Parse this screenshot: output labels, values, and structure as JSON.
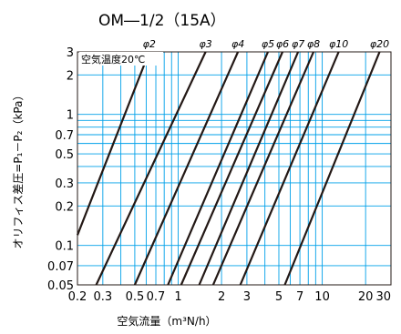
{
  "chart_data": {
    "type": "line",
    "title": "OM―1/2（15A）",
    "xlabel": "空気流量（m³N/h）",
    "ylabel": "オリフィス差圧=P₁－P₂（kPa）",
    "annotation": "空気温度20℃",
    "x_scale": "log",
    "y_scale": "log",
    "xlim": [
      0.2,
      30
    ],
    "ylim": [
      0.05,
      3
    ],
    "grid": true,
    "line_color": "#231815",
    "grid_color": "#00a0e9",
    "x_ticks": [
      {
        "value": 0.2,
        "label": "0.2"
      },
      {
        "value": 0.3,
        "label": "0.3"
      },
      {
        "value": 0.5,
        "label": "0.5"
      },
      {
        "value": 0.7,
        "label": "0.7"
      },
      {
        "value": 1,
        "label": "1"
      },
      {
        "value": 2,
        "label": "2"
      },
      {
        "value": 3,
        "label": "3"
      },
      {
        "value": 5,
        "label": "5"
      },
      {
        "value": 7,
        "label": "7"
      },
      {
        "value": 10,
        "label": "10"
      },
      {
        "value": 20,
        "label": "20"
      },
      {
        "value": 30,
        "label": "30"
      }
    ],
    "y_ticks": [
      {
        "value": 3,
        "label": "3"
      },
      {
        "value": 2,
        "label": "2"
      },
      {
        "value": 1,
        "label": "1"
      },
      {
        "value": 0.7,
        "label": "0.7"
      },
      {
        "value": 0.5,
        "label": "0.5"
      },
      {
        "value": 0.3,
        "label": "0.3"
      },
      {
        "value": 0.2,
        "label": "0.2"
      },
      {
        "value": 0.1,
        "label": "0.1"
      },
      {
        "value": 0.07,
        "label": "0.07"
      },
      {
        "value": 0.05,
        "label": "0.05"
      }
    ],
    "x_minor_gridlines": [
      0.4,
      0.6,
      0.8,
      0.9,
      4,
      6,
      8,
      9
    ],
    "y_minor_gridlines": [
      0.4,
      0.6,
      0.8,
      0.9
    ],
    "series": [
      {
        "name": "φ2",
        "x": [
          0.2,
          0.63
        ],
        "y": [
          0.12,
          3
        ]
      },
      {
        "name": "φ3",
        "x": [
          0.27,
          1.55
        ],
        "y": [
          0.05,
          3
        ]
      },
      {
        "name": "φ4",
        "x": [
          0.5,
          2.6
        ],
        "y": [
          0.05,
          3
        ]
      },
      {
        "name": "φ5",
        "x": [
          0.85,
          4.2
        ],
        "y": [
          0.05,
          3
        ]
      },
      {
        "name": "φ6",
        "x": [
          1.05,
          5.3
        ],
        "y": [
          0.05,
          3
        ]
      },
      {
        "name": "φ7",
        "x": [
          1.4,
          6.8
        ],
        "y": [
          0.05,
          3
        ]
      },
      {
        "name": "φ8",
        "x": [
          1.75,
          8.7
        ],
        "y": [
          0.05,
          3
        ]
      },
      {
        "name": "φ10",
        "x": [
          2.7,
          13
        ],
        "y": [
          0.05,
          3
        ]
      },
      {
        "name": "φ20",
        "x": [
          5.5,
          25
        ],
        "y": [
          0.05,
          3
        ]
      }
    ]
  }
}
